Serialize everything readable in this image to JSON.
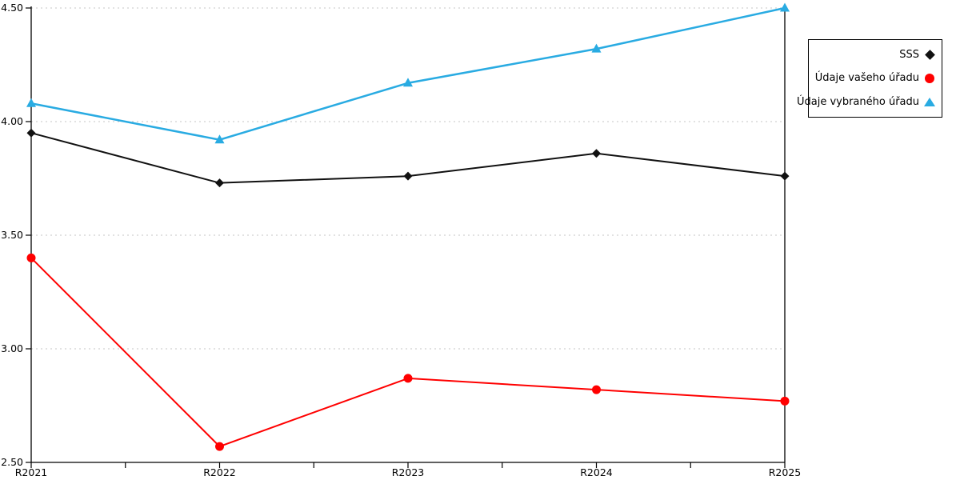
{
  "chart_data": {
    "type": "line",
    "categories": [
      "R2021",
      "R2022",
      "R2023",
      "R2024",
      "R2025"
    ],
    "series": [
      {
        "name": "SSS",
        "marker": "diamond",
        "color": "#111111",
        "values": [
          3.95,
          3.73,
          3.76,
          3.86,
          3.76
        ]
      },
      {
        "name": "Údaje vašeho úřadu",
        "marker": "circle",
        "color": "#ff0000",
        "values": [
          3.4,
          2.57,
          2.87,
          2.82,
          2.77
        ]
      },
      {
        "name": "Údaje vybraného úřadu",
        "marker": "triangle",
        "color": "#29abe2",
        "values": [
          4.08,
          3.92,
          4.17,
          4.32,
          4.5
        ]
      }
    ],
    "title": "",
    "xlabel": "",
    "ylabel": "",
    "ylim": [
      2.5,
      4.5
    ],
    "ytick_step": 0.5,
    "ytick_labels": [
      "2.50",
      "3.00",
      "3.50",
      "4.00",
      "4.50"
    ],
    "grid": true,
    "grid_style": "dotted",
    "legend_position": "top-right-outside",
    "colors": {
      "grid": "#c6c6c6",
      "axis": "#000000",
      "tick_text": "#000000"
    }
  }
}
